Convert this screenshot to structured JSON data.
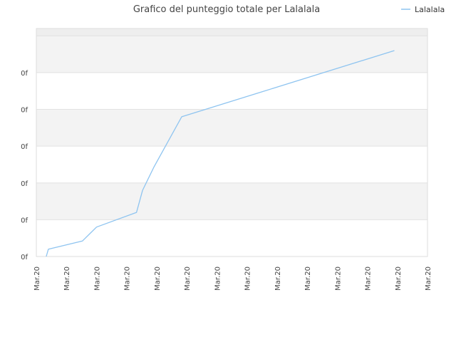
{
  "chart_data": {
    "type": "line",
    "title": "Grafico del punteggio totale per Lalalala",
    "legend": {
      "position": "top-right",
      "entries": [
        "Lalalala"
      ]
    },
    "xlabel": "",
    "ylabel": "",
    "x_tick_labels": [
      "Mar.20",
      "Mar.20",
      "Mar.20",
      "Mar.20",
      "Mar.20",
      "Mar.20",
      "Mar.20",
      "Mar.20",
      "Mar.20",
      "Mar.20",
      "Mar.20",
      "Mar.20",
      "Mar.20",
      "Mar.20"
    ],
    "y_tick_labels": [
      "0f",
      "0f",
      "0f",
      "0f",
      "0f",
      "0f"
    ],
    "xlim": [
      0,
      13
    ],
    "ylim": [
      0,
      6.2
    ],
    "grid": true,
    "series": [
      {
        "name": "Lalalala",
        "color": "#8ec4f0",
        "x": [
          0.33,
          0.4,
          1.53,
          2.0,
          3.33,
          3.53,
          3.9,
          4.83,
          11.9
        ],
        "y": [
          0.0,
          0.2,
          0.42,
          0.8,
          1.2,
          1.8,
          2.42,
          3.8,
          5.6
        ]
      }
    ]
  }
}
